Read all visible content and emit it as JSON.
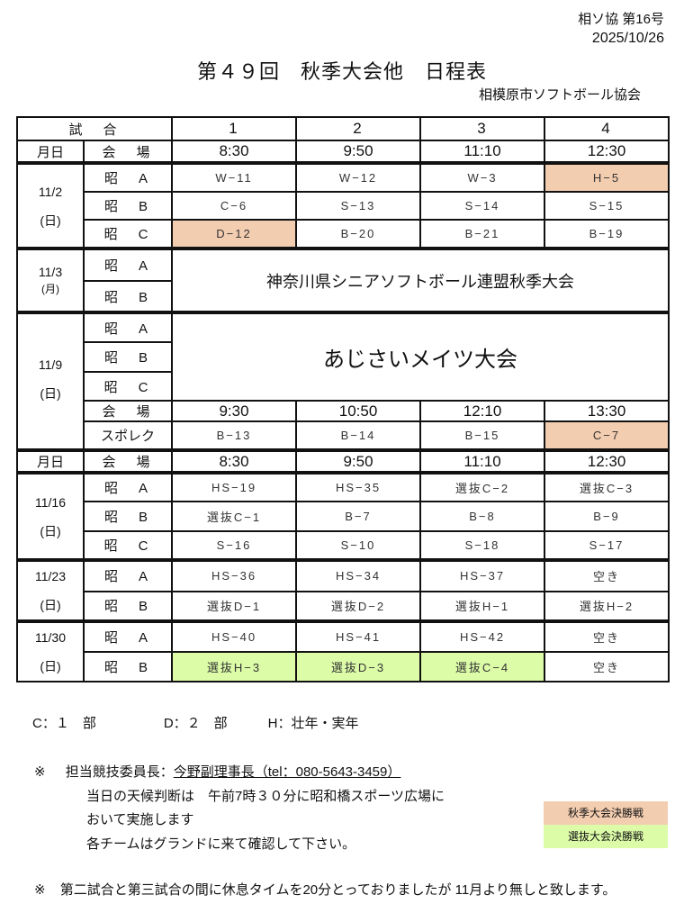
{
  "header": {
    "doc_no": "相ソ協 第16号",
    "date": "2025/10/26",
    "title": "第４９回　秋季大会他　日程表",
    "org": "相模原市ソフトボール協会"
  },
  "table": {
    "game_label": "試　合",
    "game_numbers": [
      "1",
      "2",
      "3",
      "4"
    ],
    "monthday_label": "月日",
    "venue_label": "会　場",
    "times_a": [
      "8:30",
      "9:50",
      "11:10",
      "12:30"
    ],
    "times_b": [
      "9:30",
      "10:50",
      "12:10",
      "13:30"
    ],
    "fields": {
      "a": "昭　A",
      "b": "昭　B",
      "c": "昭　C",
      "spolek": "スポレク"
    },
    "d1102": {
      "date": "11/2",
      "dow": "(日)",
      "a": [
        "W−11",
        "W−12",
        "W−3",
        "H−5"
      ],
      "b": [
        "C−6",
        "S−13",
        "S−14",
        "S−15"
      ],
      "c": [
        "D−12",
        "B−20",
        "B−21",
        "B−19"
      ]
    },
    "d1103": {
      "date": "11/3",
      "dow": "(月)",
      "event": "神奈川県シニアソフトボール連盟秋季大会"
    },
    "d1109": {
      "date": "11/9",
      "dow": "(日)",
      "event": "あじさいメイツ大会",
      "spolek": [
        "B−13",
        "B−14",
        "B−15",
        "C−7"
      ]
    },
    "d1116": {
      "date": "11/16",
      "dow": "(日)",
      "a": [
        "HS−19",
        "HS−35",
        "選抜C−2",
        "選抜C−3"
      ],
      "b": [
        "選抜C−1",
        "B−7",
        "B−8",
        "B−9"
      ],
      "c": [
        "S−16",
        "S−10",
        "S−18",
        "S−17"
      ]
    },
    "d1123": {
      "date": "11/23",
      "dow": "(日)",
      "a": [
        "HS−36",
        "HS−34",
        "HS−37",
        "空き"
      ],
      "b": [
        "選抜D−1",
        "選抜D−2",
        "選抜H−1",
        "選抜H−2"
      ]
    },
    "d1130": {
      "date": "11/30",
      "dow": "(日)",
      "a": [
        "HS−40",
        "HS−41",
        "HS−42",
        "空き"
      ],
      "b": [
        "選抜H−3",
        "選抜D−3",
        "選抜C−4",
        "空き"
      ]
    }
  },
  "notes": {
    "division_legend": "C：１　部　　　　　D：２　部　　　H：壮年・実年",
    "mark": "※",
    "contact_label": "担当競技委員長：",
    "contact": "今野副理事長（tel：080-5643-3459）",
    "weather1": "当日の天候判断は　午前7時３０分に昭和橋スポーツ広場に",
    "weather2": "おいて実施します",
    "weather3": "各チームはグランドに来て確認して下さい。",
    "break_note": "第二試合と第三試合の間に休息タイムを20分とっておりましたが 11月より無しと致します。"
  },
  "legend": {
    "autumn_final": "秋季大会決勝戦",
    "autumn_color": "#f3cdb0",
    "selection_final": "選抜大会決勝戦",
    "selection_color": "#dcfca8"
  }
}
